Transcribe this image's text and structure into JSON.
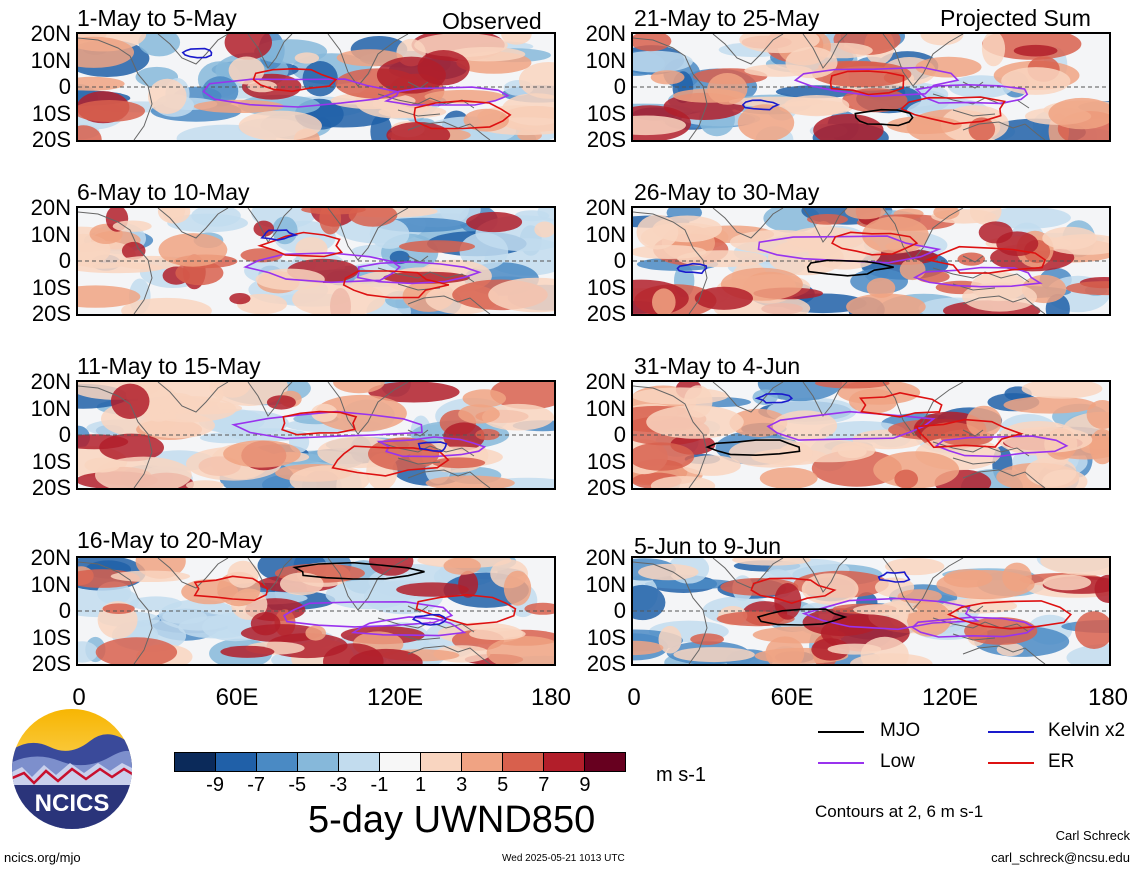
{
  "panels": {
    "p1": {
      "title": "1-May to 5-May",
      "tag": "Observed"
    },
    "p2": {
      "title": "6-May to 10-May"
    },
    "p3": {
      "title": "11-May to 15-May"
    },
    "p4": {
      "title": "16-May to 20-May"
    },
    "p5": {
      "title": "21-May to 25-May",
      "tag": "Projected Sum"
    },
    "p6": {
      "title": "26-May to 30-May"
    },
    "p7": {
      "title": "31-May to 4-Jun"
    },
    "p8": {
      "title": "5-Jun to 9-Jun"
    }
  },
  "axes": {
    "lat_labels": [
      "20N",
      "10N",
      "0",
      "10S",
      "20S"
    ],
    "lon_labels": [
      "0",
      "60E",
      "120E",
      "180"
    ]
  },
  "colorbar": {
    "ticks": [
      "-9",
      "-7",
      "-5",
      "-3",
      "-1",
      "1",
      "3",
      "5",
      "7",
      "9"
    ],
    "colors": [
      "#0b2a5a",
      "#2060a8",
      "#4a8ac4",
      "#86b8da",
      "#c2dcee",
      "#f7f7f7",
      "#f9d5c0",
      "#f0a383",
      "#d8604d",
      "#b21e2a",
      "#67001f"
    ],
    "units": "m s-1",
    "title": "5-day UWND850"
  },
  "legend": {
    "mjo": "MJO",
    "kelvin": "Kelvin x2",
    "low": "Low",
    "er": "ER",
    "contours_note": "Contours at 2, 6 m s-1",
    "colors": {
      "mjo": "#000000",
      "kelvin": "#1a1acc",
      "low": "#9933ee",
      "er": "#dd1111"
    }
  },
  "logo": {
    "text": "NCICS"
  },
  "footer": {
    "url": "ncics.org/mjo",
    "timestamp": "Wed 2025-05-21 1013 UTC",
    "author": "Carl Schreck",
    "email": "carl_schreck@ncsu.edu"
  }
}
